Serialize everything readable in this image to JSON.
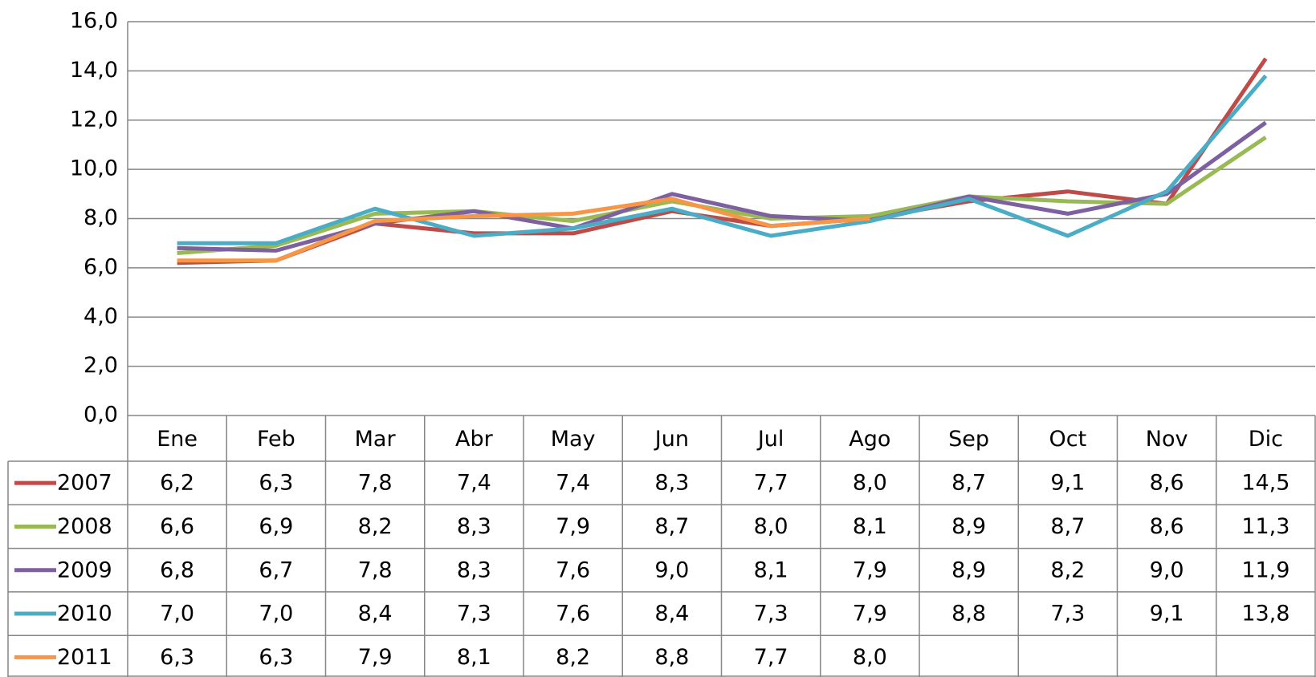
{
  "chart_data": {
    "type": "line",
    "categories": [
      "Ene",
      "Feb",
      "Mar",
      "Abr",
      "May",
      "Jun",
      "Jul",
      "Ago",
      "Sep",
      "Oct",
      "Nov",
      "Dic"
    ],
    "series": [
      {
        "name": "2007",
        "color": "#be4b48",
        "values": [
          6.2,
          6.3,
          7.8,
          7.4,
          7.4,
          8.3,
          7.7,
          8.0,
          8.7,
          9.1,
          8.6,
          14.5
        ],
        "value_labels": [
          "6,2",
          "6,3",
          "7,8",
          "7,4",
          "7,4",
          "8,3",
          "7,7",
          "8,0",
          "8,7",
          "9,1",
          "8,6",
          "14,5"
        ]
      },
      {
        "name": "2008",
        "color": "#98b954",
        "values": [
          6.6,
          6.9,
          8.2,
          8.3,
          7.9,
          8.7,
          8.0,
          8.1,
          8.9,
          8.7,
          8.6,
          11.3
        ],
        "value_labels": [
          "6,6",
          "6,9",
          "8,2",
          "8,3",
          "7,9",
          "8,7",
          "8,0",
          "8,1",
          "8,9",
          "8,7",
          "8,6",
          "11,3"
        ]
      },
      {
        "name": "2009",
        "color": "#7d60a0",
        "values": [
          6.8,
          6.7,
          7.8,
          8.3,
          7.6,
          9.0,
          8.1,
          7.9,
          8.9,
          8.2,
          9.0,
          11.9
        ],
        "value_labels": [
          "6,8",
          "6,7",
          "7,8",
          "8,3",
          "7,6",
          "9,0",
          "8,1",
          "7,9",
          "8,9",
          "8,2",
          "9,0",
          "11,9"
        ]
      },
      {
        "name": "2010",
        "color": "#4bacc6",
        "values": [
          7.0,
          7.0,
          8.4,
          7.3,
          7.6,
          8.4,
          7.3,
          7.9,
          8.8,
          7.3,
          9.1,
          13.8
        ],
        "value_labels": [
          "7,0",
          "7,0",
          "8,4",
          "7,3",
          "7,6",
          "8,4",
          "7,3",
          "7,9",
          "8,8",
          "7,3",
          "9,1",
          "13,8"
        ]
      },
      {
        "name": "2011",
        "color": "#f79646",
        "values": [
          6.3,
          6.3,
          7.9,
          8.1,
          8.2,
          8.8,
          7.7,
          8.0,
          null,
          null,
          null,
          null
        ],
        "value_labels": [
          "6,3",
          "6,3",
          "7,9",
          "8,1",
          "8,2",
          "8,8",
          "7,7",
          "8,0",
          null,
          null,
          null,
          null
        ]
      }
    ],
    "ylim": [
      0,
      16
    ],
    "yticks": [
      {
        "value": 0,
        "label": "0,0"
      },
      {
        "value": 2,
        "label": "2,0"
      },
      {
        "value": 4,
        "label": "4,0"
      },
      {
        "value": 6,
        "label": "6,0"
      },
      {
        "value": 8,
        "label": "8,0"
      },
      {
        "value": 10,
        "label": "10,0"
      },
      {
        "value": 12,
        "label": "12,0"
      },
      {
        "value": 14,
        "label": "14,0"
      },
      {
        "value": 16,
        "label": "16,0"
      }
    ],
    "grid": true
  }
}
